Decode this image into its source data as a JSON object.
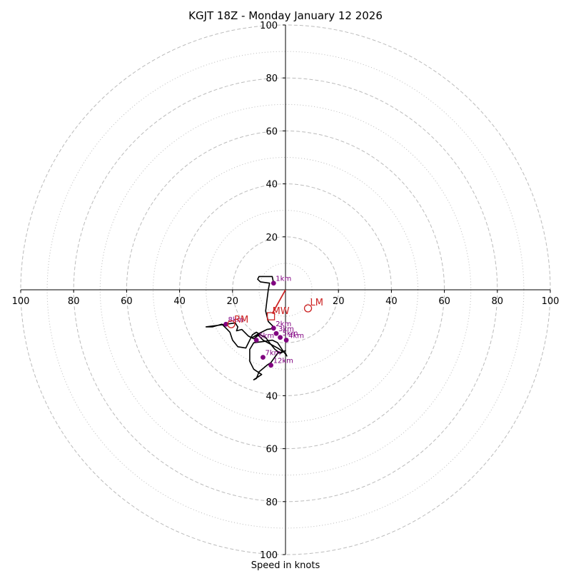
{
  "chart_data": {
    "type": "hodograph",
    "title": "KGJT 18Z - Monday January 12 2026",
    "xlabel": "Speed in knots",
    "range": [
      -100,
      100
    ],
    "rings_major": [
      20,
      40,
      60,
      80,
      100
    ],
    "rings_minor": [
      10,
      30,
      50,
      70,
      90
    ],
    "x_ticks": [
      {
        "value": -100,
        "label": "100"
      },
      {
        "value": -80,
        "label": "80"
      },
      {
        "value": -60,
        "label": "60"
      },
      {
        "value": -40,
        "label": "40"
      },
      {
        "value": -20,
        "label": "20"
      },
      {
        "value": 20,
        "label": "20"
      },
      {
        "value": 40,
        "label": "40"
      },
      {
        "value": 60,
        "label": "60"
      },
      {
        "value": 80,
        "label": "80"
      },
      {
        "value": 100,
        "label": "100"
      }
    ],
    "y_ticks": [
      {
        "value": 100,
        "label": "100"
      },
      {
        "value": 80,
        "label": "80"
      },
      {
        "value": 60,
        "label": "60"
      },
      {
        "value": 40,
        "label": "40"
      },
      {
        "value": 20,
        "label": "20"
      },
      {
        "value": -40,
        "label": "40"
      },
      {
        "value": -60,
        "label": "60"
      },
      {
        "value": -80,
        "label": "80"
      },
      {
        "value": -100,
        "label": "100"
      }
    ],
    "trace_color": "#000000",
    "height_marker_color": "#800080",
    "motion_color": "#cc2222",
    "grid_color": "#bbbbbb",
    "trace": [
      [
        -4.5,
        2.5
      ],
      [
        -5,
        5
      ],
      [
        -10,
        5
      ],
      [
        -10.5,
        4
      ],
      [
        -9.5,
        3
      ],
      [
        -6,
        2.5
      ],
      [
        -6.5,
        0
      ],
      [
        -7,
        -4
      ],
      [
        -7.5,
        -8
      ],
      [
        -6.5,
        -12
      ],
      [
        -4,
        -14.5
      ],
      [
        -7,
        -15
      ],
      [
        -10,
        -16.5
      ],
      [
        -12.5,
        -18
      ],
      [
        -10.5,
        -17
      ],
      [
        -8.5,
        -19
      ],
      [
        -3,
        -22
      ],
      [
        0,
        -24
      ],
      [
        0.5,
        -25
      ],
      [
        -1,
        -23
      ],
      [
        -3,
        -20
      ],
      [
        -5,
        -19
      ],
      [
        -8,
        -19.5
      ],
      [
        -12,
        -20
      ],
      [
        -13.5,
        -22.5
      ],
      [
        -13.5,
        -27
      ],
      [
        -12,
        -30
      ],
      [
        -9,
        -32
      ],
      [
        -12,
        -34
      ],
      [
        -11,
        -33.5
      ],
      [
        -10,
        -31
      ],
      [
        -7,
        -28.5
      ],
      [
        -5.5,
        -27.5
      ],
      [
        -3,
        -24
      ],
      [
        0,
        -23
      ],
      [
        -2,
        -24
      ],
      [
        -4,
        -22.5
      ],
      [
        -6,
        -20
      ],
      [
        -7.5,
        -18
      ],
      [
        -9.5,
        -17
      ],
      [
        -11,
        -16
      ],
      [
        -12.5,
        -17
      ],
      [
        -15,
        -22
      ],
      [
        -18,
        -21.5
      ],
      [
        -20,
        -19
      ],
      [
        -21,
        -16
      ],
      [
        -22,
        -15
      ],
      [
        -24,
        -13
      ],
      [
        -27.5,
        -14
      ],
      [
        -30,
        -14
      ],
      [
        -26,
        -13.5
      ],
      [
        -19,
        -12.5
      ],
      [
        -18,
        -14
      ],
      [
        -18.5,
        -15.5
      ],
      [
        -16.5,
        -15
      ],
      [
        -14,
        -17.5
      ],
      [
        -12,
        -18.5
      ],
      [
        -10,
        -17
      ]
    ],
    "height_markers": [
      {
        "label": "1km",
        "u": -4.5,
        "v": 2.5
      },
      {
        "label": "2km",
        "u": -4.5,
        "v": -14.5
      },
      {
        "label": "3km",
        "u": -3.5,
        "v": -16.5
      },
      {
        "label": "4km",
        "u": 0.3,
        "v": -19
      },
      {
        "label": "5km",
        "u": -2,
        "v": -18
      },
      {
        "label": "6km",
        "u": -11,
        "v": -19
      },
      {
        "label": "7km",
        "u": -8.5,
        "v": -25.5
      },
      {
        "label": "8km",
        "u": -22.5,
        "v": -13
      },
      {
        "label": "12km",
        "u": -5.5,
        "v": -28.5
      }
    ],
    "storm_motion": {
      "mw_label": "MW",
      "mw": [
        -5.5,
        -10
      ],
      "rm_label": "RM",
      "rm": [
        -20.5,
        -13
      ],
      "lm_label": "LM",
      "lm": [
        8.5,
        -7
      ],
      "shear_vector": [
        [
          0,
          0
        ],
        [
          -5,
          -9
        ]
      ]
    }
  }
}
